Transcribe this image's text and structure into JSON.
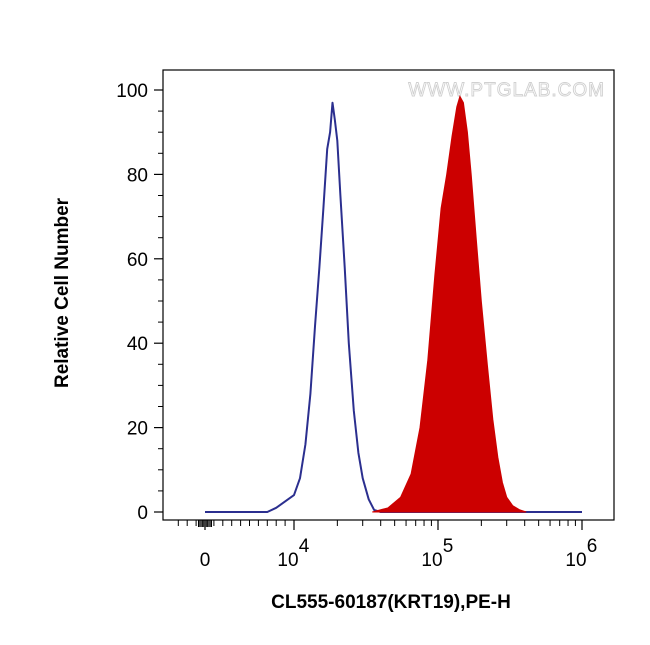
{
  "chart_data": {
    "type": "area",
    "xlabel": "CL555-60187(KRT19),PE-H",
    "ylabel": "Relative Cell Number",
    "watermark": "WWW.PTGLAB.COM",
    "x_scale": "biexponential",
    "ylim": [
      0,
      100
    ],
    "y_ticks": [
      {
        "value": 0,
        "label": "0"
      },
      {
        "value": 20,
        "label": "20"
      },
      {
        "value": 40,
        "label": "40"
      },
      {
        "value": 60,
        "label": "60"
      },
      {
        "value": 80,
        "label": "80"
      },
      {
        "value": 100,
        "label": "100"
      }
    ],
    "x_ticks": [
      {
        "value": 0,
        "base": "0",
        "exp": ""
      },
      {
        "value": 10000,
        "base": "10",
        "exp": "4"
      },
      {
        "value": 100000,
        "base": "10",
        "exp": "5"
      },
      {
        "value": 1000000,
        "base": "10",
        "exp": "6"
      }
    ],
    "grid": false,
    "series": [
      {
        "style": "outline",
        "color": "#2b2f8f",
        "points": [
          [
            0,
            0
          ],
          [
            7000,
            0
          ],
          [
            8000,
            1
          ],
          [
            9000,
            2.5
          ],
          [
            10000,
            4
          ],
          [
            11000,
            8
          ],
          [
            12000,
            16
          ],
          [
            13000,
            28
          ],
          [
            14000,
            44
          ],
          [
            15000,
            58
          ],
          [
            16000,
            72
          ],
          [
            17000,
            86
          ],
          [
            17800,
            90
          ],
          [
            18500,
            97
          ],
          [
            19200,
            93
          ],
          [
            20000,
            88
          ],
          [
            21000,
            75
          ],
          [
            22500,
            58
          ],
          [
            24000,
            40
          ],
          [
            26000,
            24
          ],
          [
            28000,
            14
          ],
          [
            30000,
            8
          ],
          [
            33000,
            3
          ],
          [
            36000,
            0.5
          ],
          [
            40000,
            0
          ],
          [
            1000000,
            0
          ]
        ]
      },
      {
        "style": "filled",
        "color": "#cc0000",
        "points": [
          [
            35000,
            0
          ],
          [
            45000,
            1
          ],
          [
            55000,
            3.5
          ],
          [
            65000,
            9
          ],
          [
            75000,
            20
          ],
          [
            85000,
            36
          ],
          [
            95000,
            56
          ],
          [
            105000,
            72
          ],
          [
            115000,
            80
          ],
          [
            125000,
            89
          ],
          [
            135000,
            96
          ],
          [
            142000,
            98.5
          ],
          [
            150000,
            97
          ],
          [
            160000,
            90
          ],
          [
            170000,
            80
          ],
          [
            185000,
            64
          ],
          [
            200000,
            50
          ],
          [
            220000,
            35
          ],
          [
            240000,
            22
          ],
          [
            260000,
            13
          ],
          [
            280000,
            7
          ],
          [
            300000,
            3.5
          ],
          [
            330000,
            1.5
          ],
          [
            370000,
            0.5
          ],
          [
            410000,
            0
          ]
        ]
      }
    ]
  }
}
